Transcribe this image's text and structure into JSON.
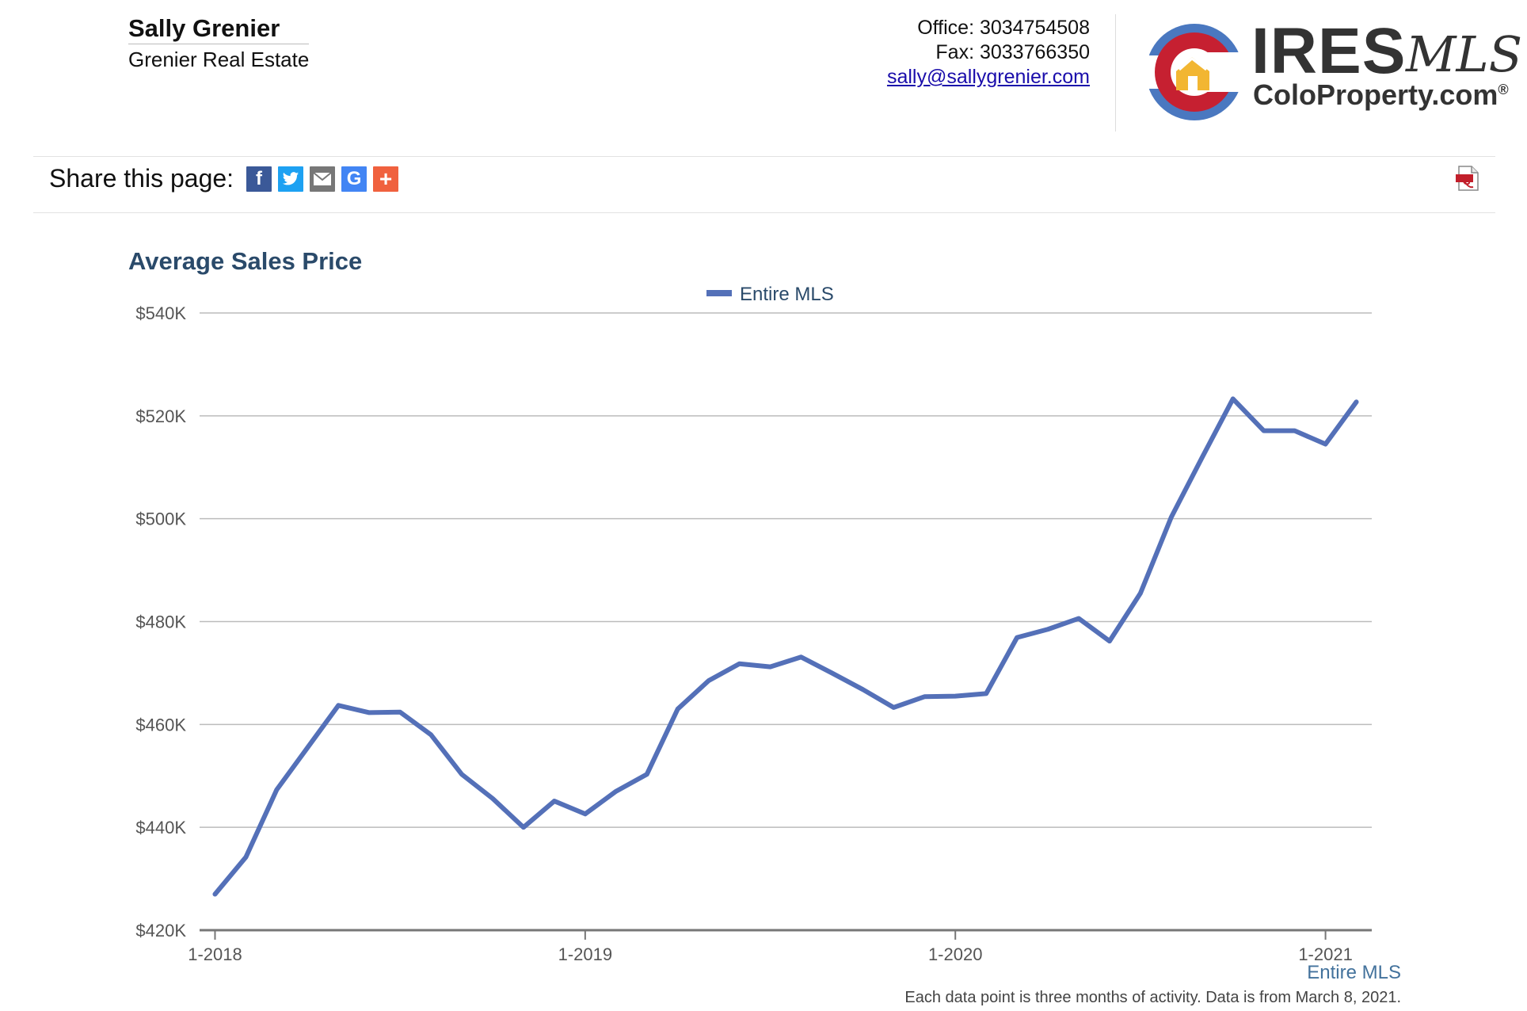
{
  "agent": {
    "name": "Sally Grenier",
    "company": "Grenier Real Estate"
  },
  "contact": {
    "office": "Office: 3034754508",
    "fax": "Fax: 3033766350",
    "email": "sally@sallygrenier.com"
  },
  "logo": {
    "ires": "IRES",
    "mls": "MLS",
    "colo": "ColoProperty.com",
    "reg": "®"
  },
  "share": {
    "label": "Share this page:",
    "buttons": [
      {
        "icon": "facebook-icon",
        "glyph": "f",
        "color": "#3b5998"
      },
      {
        "icon": "twitter-icon",
        "glyph": "t",
        "color": "#1da1f2"
      },
      {
        "icon": "email-icon",
        "glyph": "✉",
        "color": "#777777"
      },
      {
        "icon": "google-icon",
        "glyph": "G",
        "color": "#4285f4"
      },
      {
        "icon": "add-share-icon",
        "glyph": "+",
        "color": "#f0613e"
      }
    ]
  },
  "pdf_icon": "pdf-icon",
  "chart_data": {
    "type": "line",
    "title": "Average Sales Price",
    "xlabel": "",
    "ylabel": "",
    "legend": "top-center",
    "grid": true,
    "ylim": [
      420000,
      540000
    ],
    "y_ticks": [
      420000,
      440000,
      460000,
      480000,
      500000,
      520000,
      540000
    ],
    "y_tick_labels": [
      "$420K",
      "$440K",
      "$460K",
      "$480K",
      "$500K",
      "$520K",
      "$540K"
    ],
    "x_ticks": [
      0,
      12,
      24,
      36
    ],
    "x_tick_labels": [
      "1-2018",
      "1-2019",
      "1-2020",
      "1-2021"
    ],
    "x_range": [
      -0.5,
      37.5
    ],
    "series": [
      {
        "name": "Entire MLS",
        "color": "#5470b8",
        "x": [
          0,
          1,
          2,
          3,
          4,
          5,
          6,
          7,
          8,
          9,
          10,
          11,
          12,
          13,
          14,
          15,
          16,
          17,
          18,
          19,
          20,
          21,
          22,
          23,
          24,
          25,
          26,
          27,
          28,
          29,
          30,
          31,
          32,
          33,
          34,
          35,
          36,
          37
        ],
        "values": [
          427000,
          434200,
          447300,
          455500,
          463700,
          462300,
          462400,
          458000,
          450300,
          445600,
          440000,
          445100,
          442600,
          447000,
          450300,
          463000,
          468500,
          471800,
          471200,
          473100,
          470000,
          466800,
          463300,
          465400,
          465500,
          466000,
          476900,
          478500,
          480600,
          476200,
          485500,
          500300,
          511900,
          523300,
          517100,
          517100,
          514500,
          522700
        ]
      }
    ]
  },
  "source_link": "Entire MLS",
  "footnote": "Each data point is three months of activity. Data is from March 8, 2021."
}
